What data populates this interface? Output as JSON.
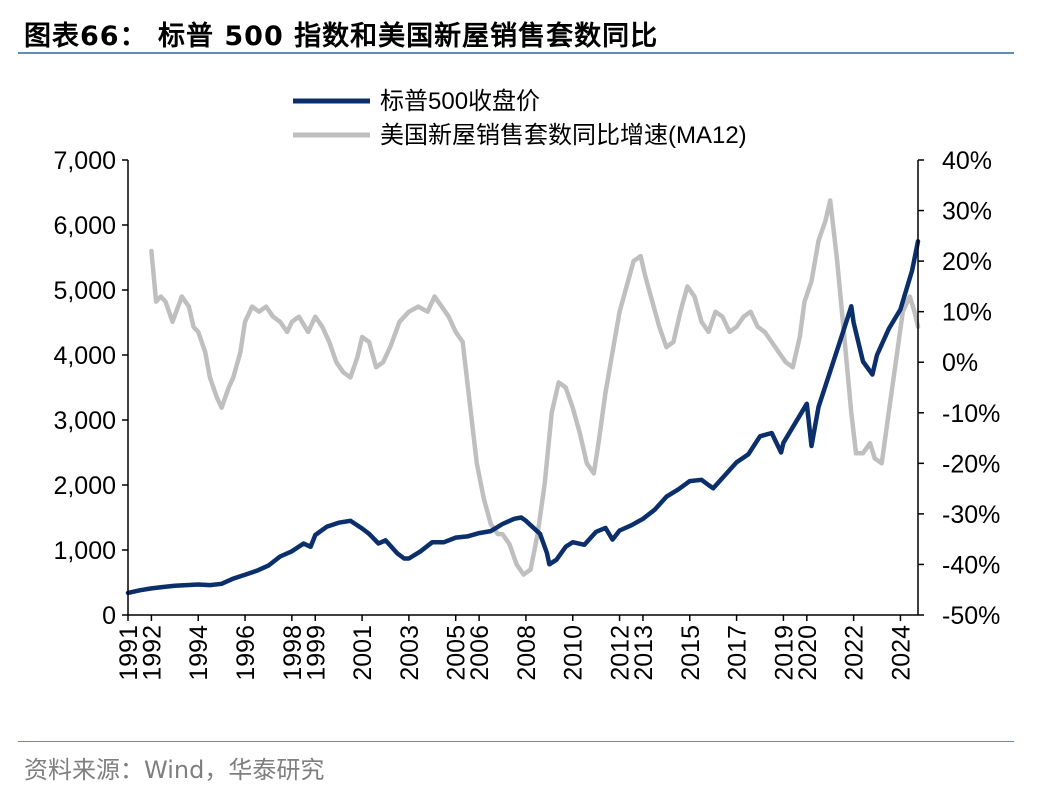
{
  "figure": {
    "title": "图表66： 标普 500 指数和美国新屋销售套数同比",
    "source": "资料来源：Wind，华泰研究"
  },
  "chart_data": {
    "type": "line",
    "title": "",
    "xlabel": "",
    "ylabel": "",
    "x_tick_labels": [
      "1991",
      "1992",
      "1994",
      "1996",
      "1998",
      "1999",
      "2001",
      "2003",
      "2005",
      "2006",
      "2008",
      "2010",
      "2012",
      "2013",
      "2015",
      "2017",
      "2019",
      "2020",
      "2022",
      "2024"
    ],
    "x_tick_positions": [
      1991.0,
      1992.0,
      1994.0,
      1996.0,
      1998.0,
      1999.0,
      2001.0,
      2003.0,
      2005.0,
      2006.0,
      2008.0,
      2010.0,
      2012.0,
      2013.0,
      2015.0,
      2017.0,
      2019.0,
      2020.0,
      2022.0,
      2024.0
    ],
    "xlim": [
      1991.0,
      2024.75
    ],
    "y_left": {
      "lim": [
        0,
        7000
      ],
      "ticks": [
        0,
        1000,
        2000,
        3000,
        4000,
        5000,
        6000,
        7000
      ],
      "tick_labels": [
        "0",
        "1,000",
        "2,000",
        "3,000",
        "4,000",
        "5,000",
        "6,000",
        "7,000"
      ]
    },
    "y_right": {
      "lim": [
        -50,
        40
      ],
      "ticks": [
        -50,
        -40,
        -30,
        -20,
        -10,
        0,
        10,
        20,
        30,
        40
      ],
      "tick_labels": [
        "-50%",
        "-40%",
        "-30%",
        "-20%",
        "-10%",
        "0%",
        "10%",
        "20%",
        "30%",
        "40%"
      ]
    },
    "series": [
      {
        "name": "标普500收盘价",
        "axis": "left",
        "color": "#0b2f6b",
        "x": [
          1991.0,
          1991.5,
          1992.0,
          1992.5,
          1993.0,
          1993.5,
          1994.0,
          1994.5,
          1995.0,
          1995.5,
          1996.0,
          1996.5,
          1997.0,
          1997.5,
          1998.0,
          1998.5,
          1998.8,
          1999.0,
          1999.5,
          2000.0,
          2000.5,
          2001.0,
          2001.3,
          2001.7,
          2002.0,
          2002.5,
          2002.8,
          2003.0,
          2003.5,
          2004.0,
          2004.5,
          2005.0,
          2005.5,
          2006.0,
          2006.5,
          2007.0,
          2007.5,
          2007.8,
          2008.0,
          2008.3,
          2008.6,
          2008.9,
          2009.0,
          2009.3,
          2009.7,
          2010.0,
          2010.5,
          2011.0,
          2011.4,
          2011.7,
          2012.0,
          2012.5,
          2013.0,
          2013.5,
          2014.0,
          2014.5,
          2015.0,
          2015.5,
          2015.8,
          2016.0,
          2016.5,
          2017.0,
          2017.5,
          2018.0,
          2018.5,
          2018.9,
          2019.0,
          2019.5,
          2020.0,
          2020.2,
          2020.5,
          2021.0,
          2021.5,
          2021.9,
          2022.0,
          2022.4,
          2022.8,
          2023.0,
          2023.5,
          2024.0,
          2024.5,
          2024.75
        ],
        "values": [
          340,
          380,
          410,
          430,
          450,
          460,
          470,
          460,
          480,
          560,
          620,
          680,
          760,
          900,
          980,
          1100,
          1050,
          1230,
          1360,
          1420,
          1450,
          1330,
          1250,
          1100,
          1150,
          950,
          870,
          870,
          980,
          1120,
          1120,
          1190,
          1210,
          1260,
          1290,
          1400,
          1480,
          1500,
          1450,
          1350,
          1250,
          950,
          780,
          850,
          1050,
          1120,
          1080,
          1280,
          1340,
          1160,
          1300,
          1380,
          1480,
          1620,
          1820,
          1930,
          2060,
          2080,
          2000,
          1950,
          2150,
          2350,
          2470,
          2750,
          2800,
          2500,
          2650,
          2950,
          3250,
          2600,
          3200,
          3750,
          4300,
          4750,
          4500,
          3900,
          3700,
          4000,
          4400,
          4700,
          5300,
          5750
        ]
      },
      {
        "name": "美国新屋销售套数同比增速(MA12)",
        "axis": "right",
        "color": "#bfbfbf",
        "x": [
          1992.0,
          1992.2,
          1992.4,
          1992.6,
          1992.9,
          1993.3,
          1993.6,
          1993.8,
          1994.0,
          1994.3,
          1994.5,
          1994.8,
          1995.0,
          1995.3,
          1995.5,
          1995.8,
          1996.0,
          1996.3,
          1996.6,
          1996.9,
          1997.2,
          1997.5,
          1997.8,
          1998.0,
          1998.3,
          1998.7,
          1999.0,
          1999.3,
          1999.6,
          1999.9,
          2000.2,
          2000.5,
          2000.8,
          2001.0,
          2001.3,
          2001.6,
          2001.9,
          2002.2,
          2002.6,
          2003.0,
          2003.4,
          2003.8,
          2004.1,
          2004.4,
          2004.7,
          2005.0,
          2005.3,
          2005.6,
          2005.9,
          2006.2,
          2006.5,
          2006.8,
          2007.0,
          2007.3,
          2007.6,
          2007.9,
          2008.2,
          2008.5,
          2008.8,
          2009.1,
          2009.4,
          2009.7,
          2010.0,
          2010.3,
          2010.6,
          2010.9,
          2011.1,
          2011.4,
          2011.7,
          2012.0,
          2012.3,
          2012.6,
          2012.9,
          2013.1,
          2013.4,
          2013.7,
          2014.0,
          2014.3,
          2014.6,
          2014.9,
          2015.2,
          2015.5,
          2015.8,
          2016.1,
          2016.4,
          2016.7,
          2017.0,
          2017.3,
          2017.6,
          2017.9,
          2018.2,
          2018.5,
          2018.8,
          2019.1,
          2019.4,
          2019.7,
          2019.9,
          2020.2,
          2020.5,
          2020.8,
          2021.0,
          2021.3,
          2021.6,
          2021.9,
          2022.1,
          2022.4,
          2022.7,
          2022.9,
          2023.2,
          2023.5,
          2023.8,
          2024.1,
          2024.4,
          2024.6,
          2024.75
        ],
        "values": [
          22,
          12,
          13,
          12,
          8,
          13,
          11,
          7,
          6,
          2,
          -3,
          -7,
          -9,
          -5,
          -3,
          2,
          8,
          11,
          10,
          11,
          9,
          8,
          6,
          8,
          9,
          6,
          9,
          7,
          4,
          0,
          -2,
          -3,
          1,
          5,
          4,
          -1,
          0,
          3,
          8,
          10,
          11,
          10,
          13,
          11,
          9,
          6,
          4,
          -8,
          -20,
          -27,
          -32,
          -34,
          -34,
          -36,
          -40,
          -42,
          -41,
          -34,
          -24,
          -10,
          -4,
          -5,
          -9,
          -14,
          -20,
          -22,
          -16,
          -6,
          2,
          10,
          15,
          20,
          21,
          17,
          12,
          7,
          3,
          4,
          10,
          15,
          13,
          8,
          6,
          10,
          9,
          6,
          7,
          9,
          10,
          7,
          6,
          4,
          2,
          0,
          -1,
          5,
          12,
          16,
          24,
          28,
          32,
          20,
          5,
          -10,
          -18,
          -18,
          -16,
          -19,
          -20,
          -10,
          0,
          10,
          13,
          10,
          7
        ]
      }
    ],
    "legend": {
      "position": "top",
      "entries": [
        "标普500收盘价",
        "美国新屋销售套数同比增速(MA12)"
      ]
    }
  }
}
